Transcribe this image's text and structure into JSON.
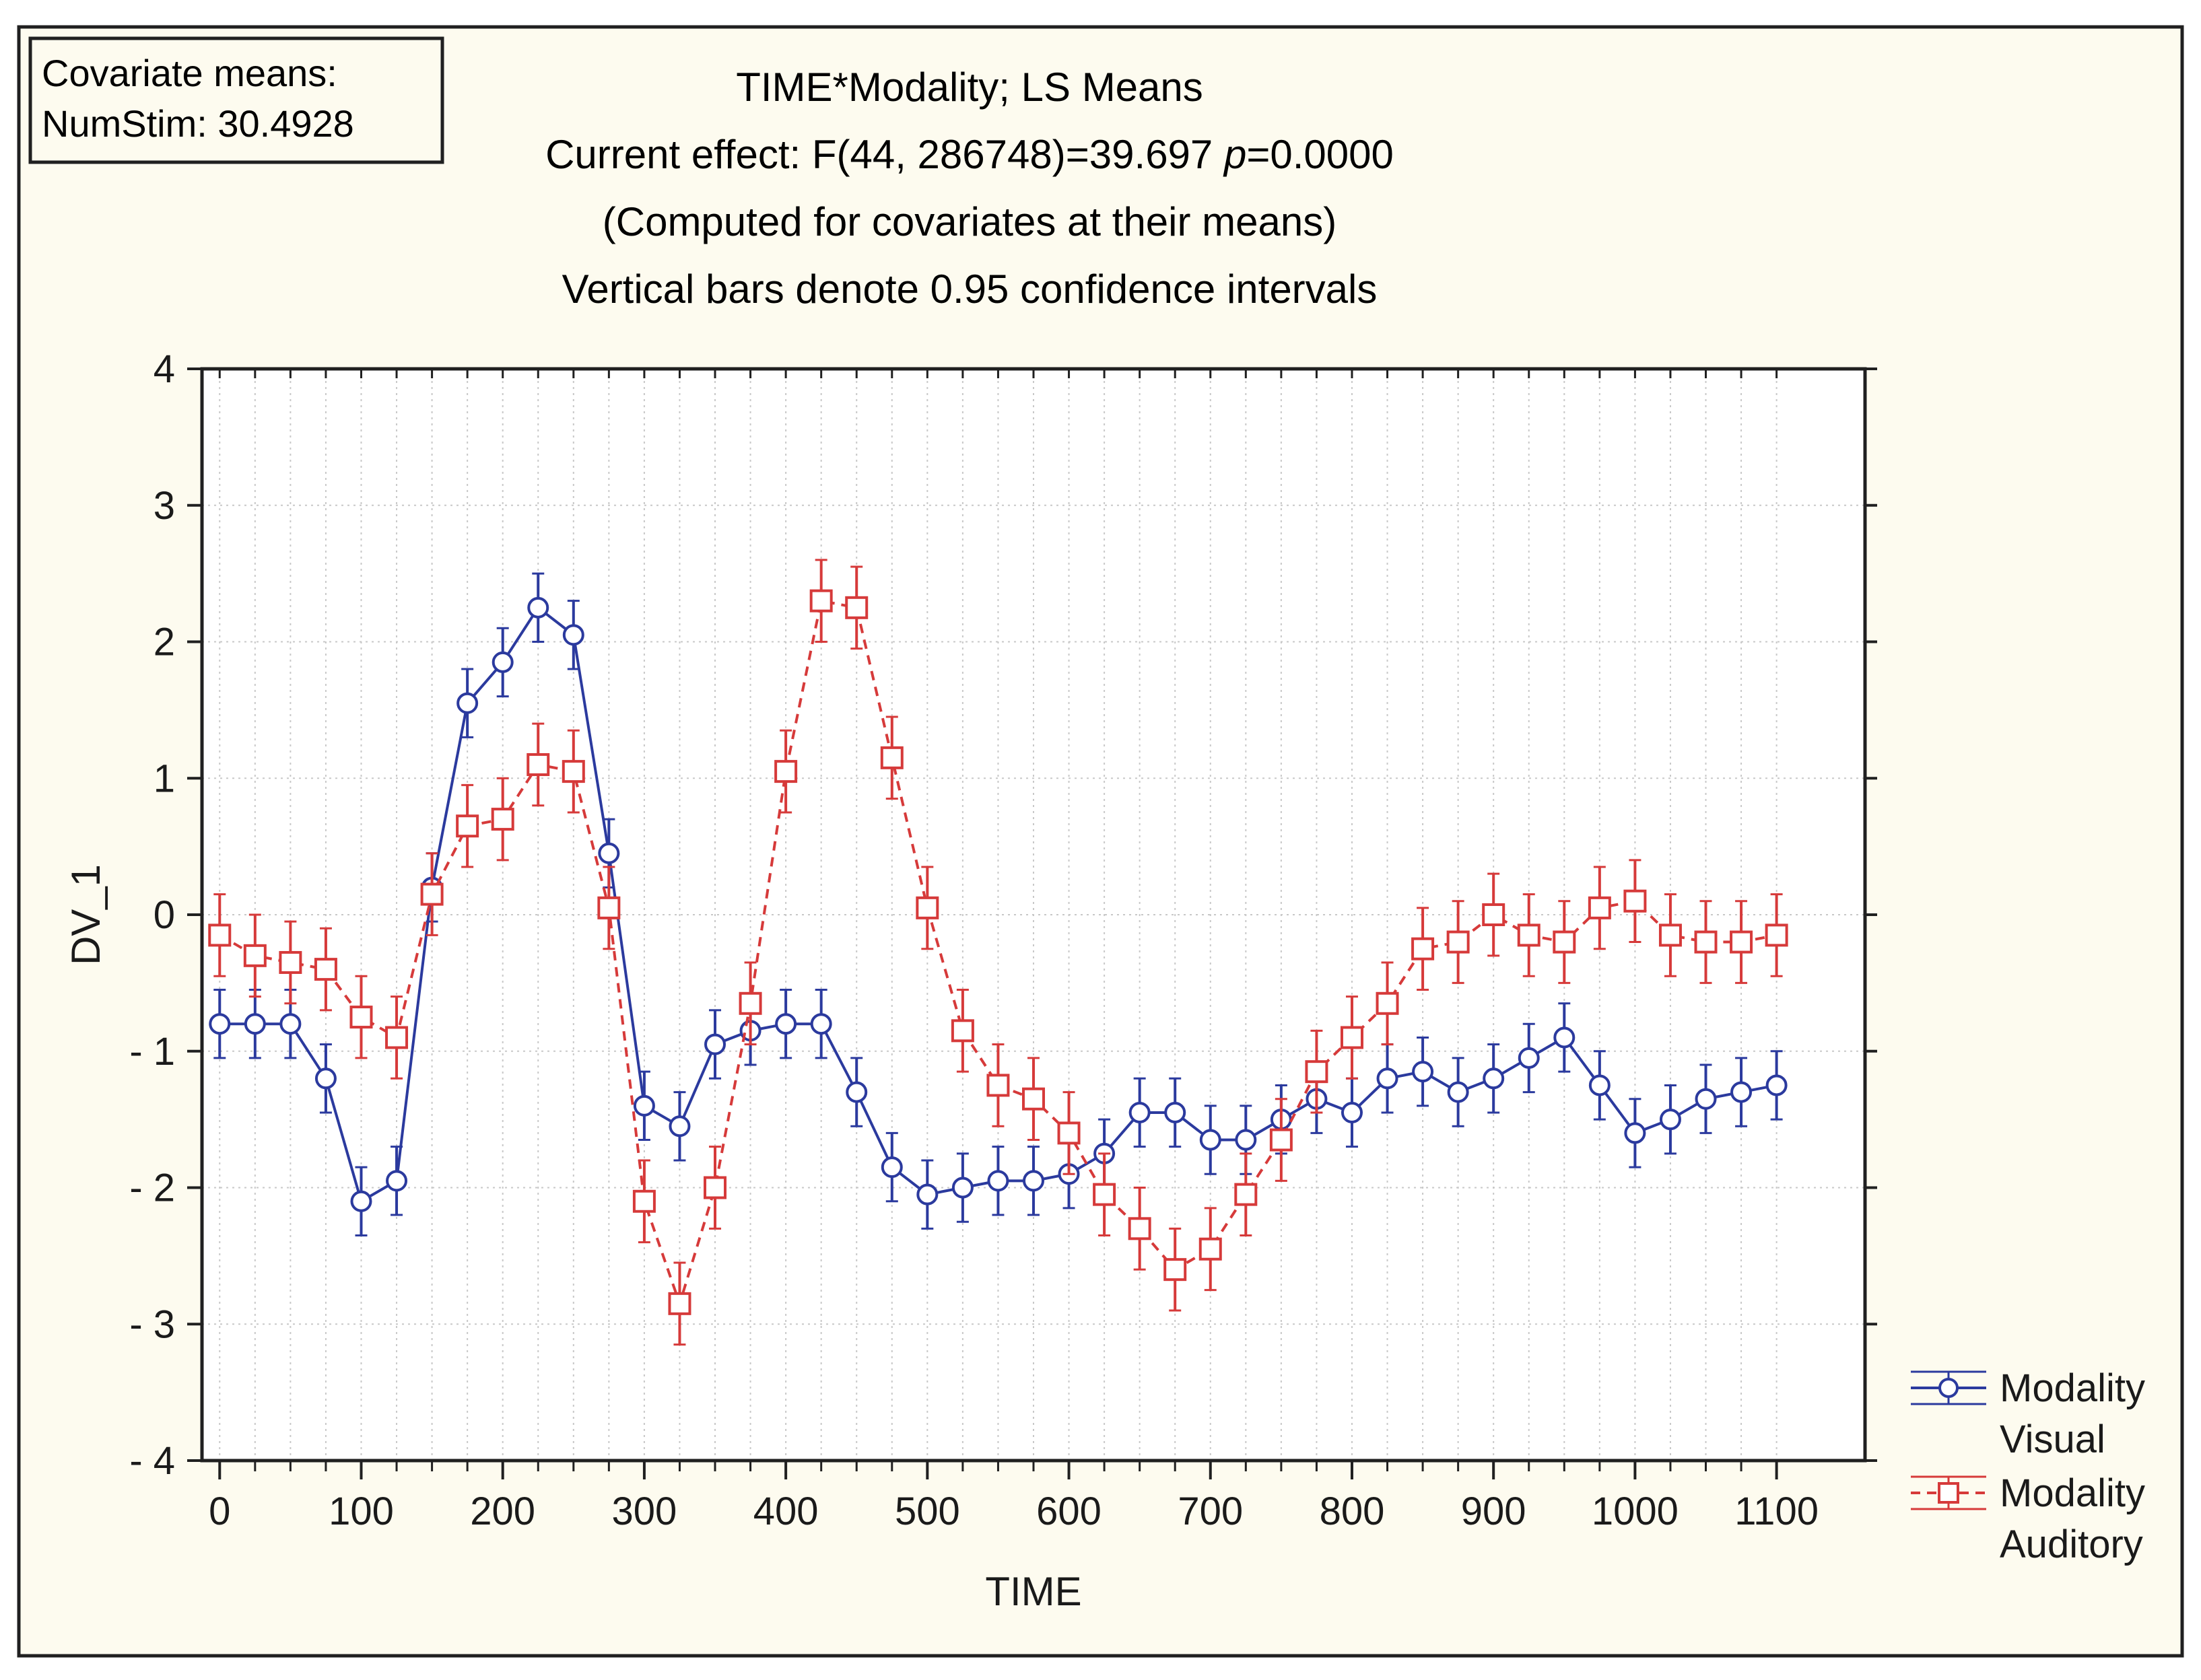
{
  "colors": {
    "panel_background": "#fdfbef",
    "plot_background": "#ffffff",
    "frame": "#202020",
    "grid": "#c8c8c8",
    "text": "#1a1a1a",
    "visual": "#2b3a9e",
    "auditory": "#d63a3a"
  },
  "chart_data": {
    "type": "line",
    "title_lines": [
      "TIME*Modality; LS Means",
      "Current effect: F(44, 286748)=39.697 p=0.0000",
      "(Computed for covariates at their means)",
      "Vertical bars denote 0.95 confidence intervals"
    ],
    "title_effect_prefix": "Current effect: F(44, 286748)=39.697 ",
    "title_effect_p": "p",
    "title_effect_suffix": "=0.0000",
    "covariate_box": {
      "line1": "Covariate means:",
      "line2": "NumStim: 30.4928"
    },
    "xlabel": "TIME",
    "ylabel": "DV_1",
    "xlim": [
      -12.5,
      1162.5
    ],
    "ylim": [
      -4,
      4
    ],
    "x_ticks": [
      0,
      100,
      200,
      300,
      400,
      500,
      600,
      700,
      800,
      900,
      1000,
      1100
    ],
    "x_tick_labels": [
      "0",
      "100",
      "200",
      "300",
      "400",
      "500",
      "600",
      "700",
      "800",
      "900",
      "1000",
      "1100"
    ],
    "y_ticks": [
      4,
      3,
      2,
      1,
      0,
      -1,
      -2,
      -3,
      -4
    ],
    "y_tick_labels": [
      "4",
      "3",
      "2",
      "1",
      "0",
      "- 1",
      "- 2",
      "- 3",
      "- 4"
    ],
    "grid": true,
    "legend_position": "bottom-right-outside",
    "x": [
      0,
      25,
      50,
      75,
      100,
      125,
      150,
      175,
      200,
      225,
      250,
      275,
      300,
      325,
      350,
      375,
      400,
      425,
      450,
      475,
      500,
      525,
      550,
      575,
      600,
      625,
      650,
      675,
      700,
      725,
      750,
      775,
      800,
      825,
      850,
      875,
      900,
      925,
      950,
      975,
      1000,
      1025,
      1050,
      1075,
      1100
    ],
    "series": [
      {
        "name": "Modality Visual",
        "legend_line1": "Modality",
        "legend_line2": "Visual",
        "marker": "circle",
        "line_style": "solid",
        "values": [
          -0.8,
          -0.8,
          -0.8,
          -1.2,
          -2.1,
          -1.95,
          0.2,
          1.55,
          1.85,
          2.25,
          2.05,
          0.45,
          -1.4,
          -1.55,
          -0.95,
          -0.85,
          -0.8,
          -0.8,
          -1.3,
          -1.85,
          -2.05,
          -2.0,
          -1.95,
          -1.95,
          -1.9,
          -1.75,
          -1.45,
          -1.45,
          -1.65,
          -1.65,
          -1.5,
          -1.35,
          -1.45,
          -1.2,
          -1.15,
          -1.3,
          -1.2,
          -1.05,
          -0.9,
          -1.25,
          -1.6,
          -1.5,
          -1.35,
          -1.3,
          -1.25
        ],
        "ci_half_width": 0.25
      },
      {
        "name": "Modality Auditory",
        "legend_line1": "Modality",
        "legend_line2": "Auditory",
        "marker": "square",
        "line_style": "dashed",
        "values": [
          -0.15,
          -0.3,
          -0.35,
          -0.4,
          -0.75,
          -0.9,
          0.15,
          0.65,
          0.7,
          1.1,
          1.05,
          0.05,
          -2.1,
          -2.85,
          -2.0,
          -0.65,
          1.05,
          2.3,
          2.25,
          1.15,
          0.05,
          -0.85,
          -1.25,
          -1.35,
          -1.6,
          -2.05,
          -2.3,
          -2.6,
          -2.45,
          -2.05,
          -1.65,
          -1.15,
          -0.9,
          -0.65,
          -0.25,
          -0.2,
          0.0,
          -0.15,
          -0.2,
          0.05,
          0.1,
          -0.15,
          -0.2,
          -0.2,
          -0.15
        ],
        "ci_half_width": 0.3
      }
    ]
  }
}
